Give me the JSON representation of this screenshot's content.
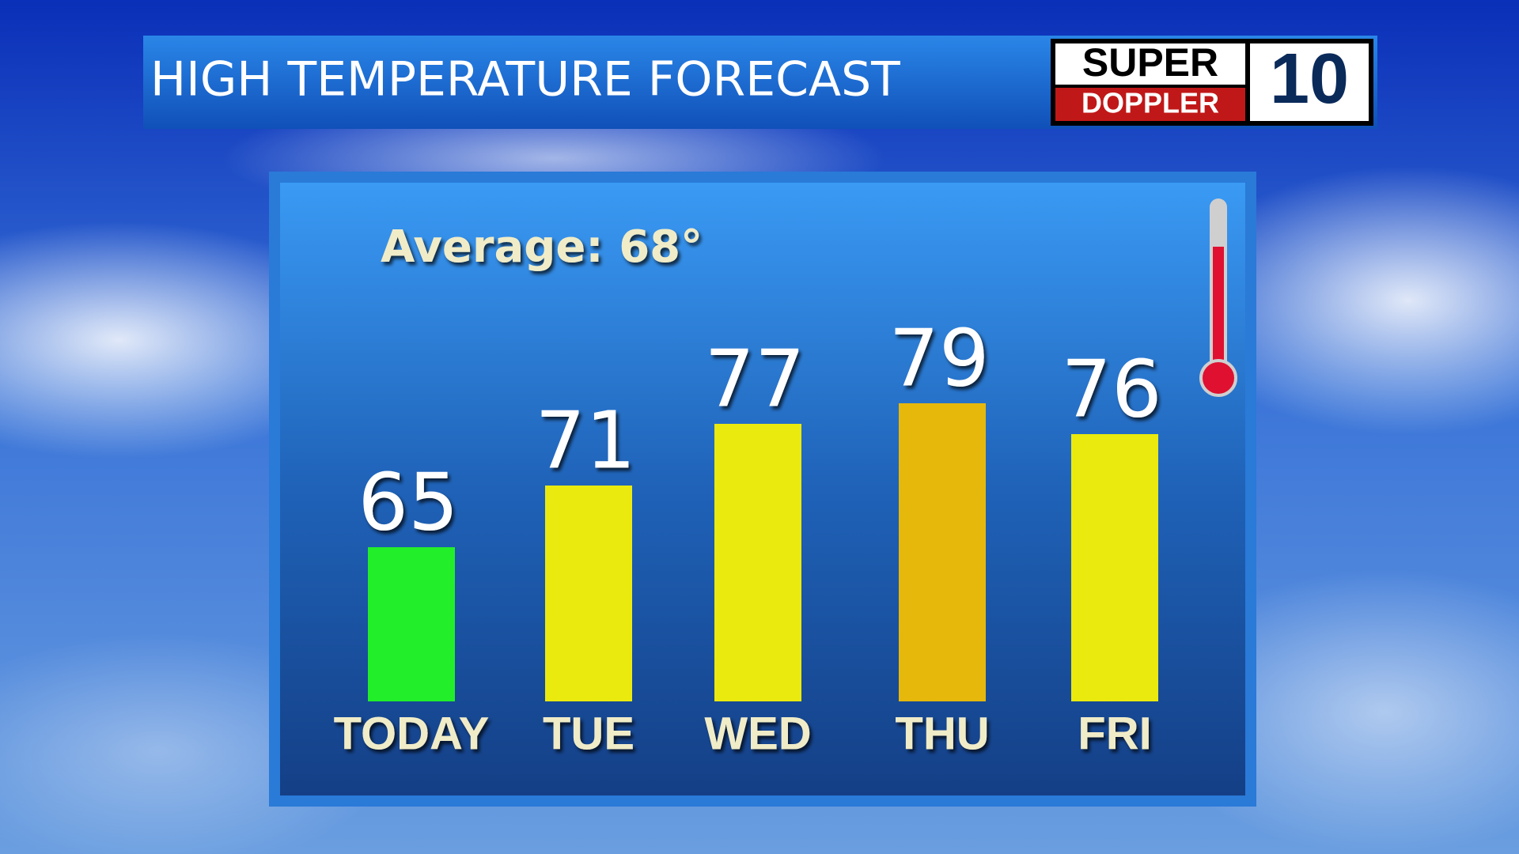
{
  "chart_data": {
    "type": "bar",
    "title": "HIGH TEMPERATURE FORECAST",
    "annotation": "Average: 68°",
    "categories": [
      "TODAY",
      "TUE",
      "WED",
      "THU",
      "FRI"
    ],
    "values": [
      65,
      71,
      77,
      79,
      76
    ],
    "colors": [
      "#22ee2a",
      "#eaea0e",
      "#eaea0e",
      "#e6b80c",
      "#eaea0e"
    ],
    "ylim": [
      50,
      80
    ]
  },
  "logo": {
    "line1": "SUPER",
    "line2": "DOPPLER",
    "number": "10"
  }
}
